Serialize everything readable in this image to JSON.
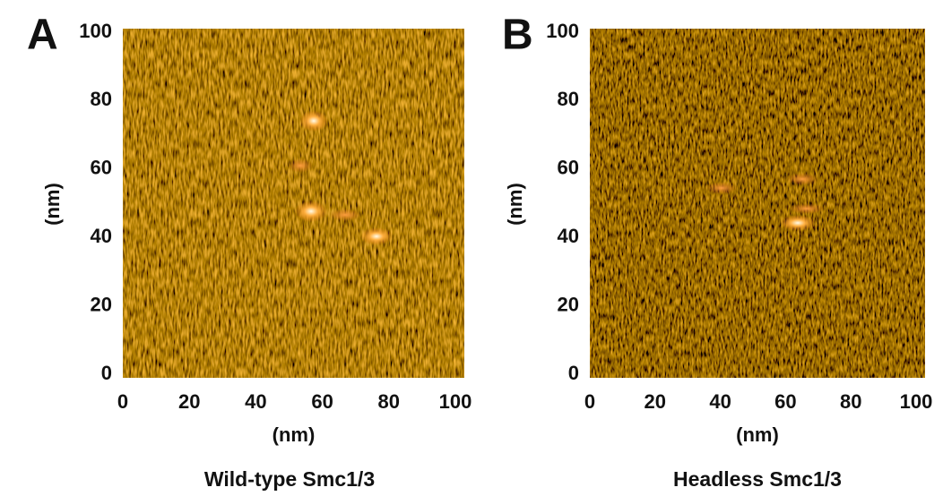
{
  "chart_data": [
    {
      "type": "image",
      "panel_label": "A",
      "caption": "Wild-type Smc1/3",
      "xlabel": "(nm)",
      "ylabel": "(nm)",
      "xlim": [
        0,
        100
      ],
      "ylim": [
        0,
        100
      ],
      "xticks": [
        0,
        20,
        40,
        60,
        80,
        100
      ],
      "yticks": [
        0,
        20,
        40,
        60,
        80,
        100
      ]
    },
    {
      "type": "image",
      "panel_label": "B",
      "caption": "Headless Smc1/3",
      "xlabel": "(nm)",
      "ylabel": "(nm)",
      "xlim": [
        0,
        100
      ],
      "ylim": [
        0,
        100
      ],
      "xticks": [
        0,
        20,
        40,
        60,
        80,
        100
      ],
      "yticks": [
        0,
        20,
        40,
        60,
        80,
        100
      ]
    }
  ]
}
